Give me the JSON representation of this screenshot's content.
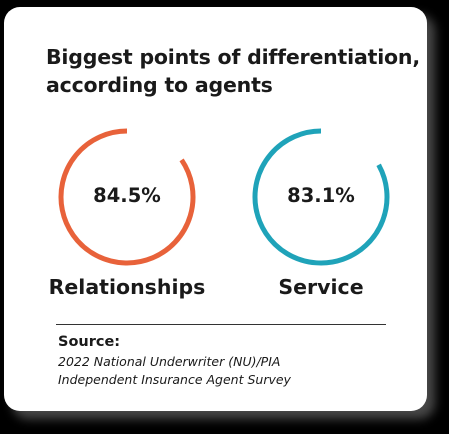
{
  "title_lines": [
    "Biggest points of differentiation,",
    "according to agents"
  ],
  "chart_data": {
    "type": "pie",
    "title": "Biggest points of differentiation, according to agents",
    "series": [
      {
        "name": "Relationships",
        "value": 84.5,
        "value_label": "84.5%",
        "color": "#e8623a"
      },
      {
        "name": "Service",
        "value": 83.1,
        "value_label": "83.1%",
        "color": "#1fa3b9"
      }
    ],
    "unit": "%",
    "max": 100
  },
  "source": {
    "heading": "Source:",
    "lines": [
      "2022 National Underwriter (NU)/PIA",
      "Independent Insurance Agent Survey"
    ]
  },
  "colors": {
    "background": "#000000",
    "card": "#ffffff",
    "text": "#1a1a1a",
    "relationships": "#e8623a",
    "service": "#1fa3b9"
  }
}
